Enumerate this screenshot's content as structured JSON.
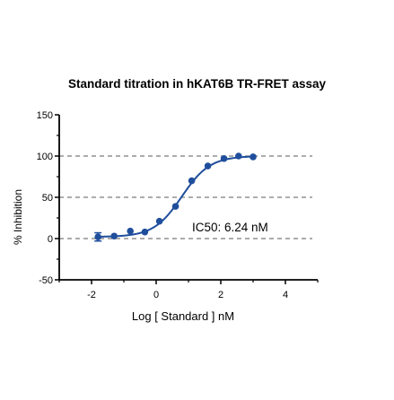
{
  "chart_data": {
    "type": "scatter",
    "title": "Standard titration in hKAT6B TR-FRET assay",
    "xlabel": "Log [ Standard ] nM",
    "ylabel": "% Inhibition",
    "xlim": [
      -3,
      5
    ],
    "ylim": [
      -50,
      150
    ],
    "x_ticks": [
      -2,
      0,
      2,
      4
    ],
    "y_ticks": [
      -50,
      0,
      50,
      100,
      150
    ],
    "reference_lines": [
      0,
      50,
      100
    ],
    "annotation": "IC50:  6.24 nM",
    "ic50_log_nM": 0.795,
    "hill_slope": 1.0,
    "bottom": 2,
    "top": 100,
    "series": [
      {
        "x": [
          -1.8,
          -1.3,
          -0.8,
          -0.35,
          0.1,
          0.6,
          1.1,
          1.6,
          2.1,
          2.55,
          3.0
        ],
        "y": [
          2,
          3,
          9,
          8,
          21,
          39,
          70,
          88,
          97,
          100,
          99
        ],
        "error": [
          5,
          1,
          1,
          1,
          1,
          1,
          1,
          1,
          1,
          1,
          1
        ]
      }
    ],
    "color": "#1f4e9c",
    "grid": false
  }
}
